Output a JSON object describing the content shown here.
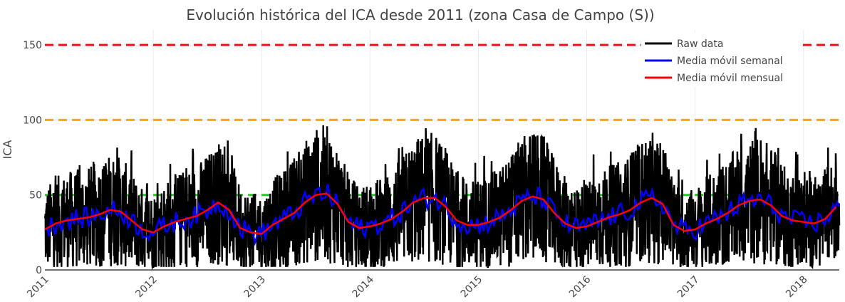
{
  "chart_data": {
    "type": "line",
    "title": "Evolución histórica del ICA desde 2011 (zona Casa de Campo (S))",
    "xlabel": "",
    "ylabel": "ICA",
    "xlim": [
      2011.0,
      2018.33
    ],
    "ylim": [
      0,
      160
    ],
    "x_ticks": [
      "2011",
      "2012",
      "2013",
      "2014",
      "2015",
      "2016",
      "2017",
      "2018"
    ],
    "y_ticks": [
      0,
      50,
      100,
      150
    ],
    "grid": true,
    "legend_position": "top-right",
    "thresholds": [
      {
        "value": 50,
        "color": "#22cc22"
      },
      {
        "value": 100,
        "color": "#ffa500"
      },
      {
        "value": 150,
        "color": "#ee1111"
      }
    ],
    "series": [
      {
        "name": "Raw data",
        "color": "#000000",
        "range_min": 2,
        "range_max": 97,
        "description_pattern": "daily values oscillating around the monthly mean"
      },
      {
        "name": "Media móvil semanal",
        "color": "#0000ff"
      },
      {
        "name": "Media móvil mensual",
        "color": "#ff0000",
        "x": [
          2011.0,
          2011.1,
          2011.2,
          2011.3,
          2011.4,
          2011.5,
          2011.6,
          2011.7,
          2011.8,
          2011.9,
          2012.0,
          2012.1,
          2012.2,
          2012.3,
          2012.4,
          2012.5,
          2012.6,
          2012.7,
          2012.8,
          2012.9,
          2013.0,
          2013.1,
          2013.2,
          2013.3,
          2013.4,
          2013.5,
          2013.6,
          2013.7,
          2013.8,
          2013.9,
          2014.0,
          2014.1,
          2014.2,
          2014.3,
          2014.4,
          2014.5,
          2014.6,
          2014.7,
          2014.8,
          2014.9,
          2015.0,
          2015.1,
          2015.2,
          2015.3,
          2015.4,
          2015.5,
          2015.6,
          2015.7,
          2015.8,
          2015.9,
          2016.0,
          2016.1,
          2016.2,
          2016.3,
          2016.4,
          2016.5,
          2016.6,
          2016.7,
          2016.8,
          2016.9,
          2017.0,
          2017.1,
          2017.2,
          2017.3,
          2017.4,
          2017.5,
          2017.6,
          2017.7,
          2017.8,
          2017.9,
          2018.0,
          2018.1,
          2018.2,
          2018.3
        ],
        "values": [
          27,
          31,
          33,
          34,
          35,
          37,
          40,
          39,
          33,
          27,
          25,
          29,
          32,
          34,
          36,
          40,
          45,
          40,
          28,
          25,
          24,
          30,
          34,
          38,
          45,
          50,
          51,
          44,
          32,
          28,
          29,
          31,
          34,
          39,
          45,
          48,
          48,
          42,
          33,
          30,
          30,
          32,
          35,
          40,
          46,
          49,
          47,
          38,
          31,
          28,
          29,
          32,
          35,
          37,
          40,
          45,
          48,
          44,
          30,
          26,
          27,
          31,
          34,
          38,
          43,
          46,
          47,
          43,
          36,
          33,
          32,
          31,
          34,
          42
        ]
      }
    ]
  }
}
